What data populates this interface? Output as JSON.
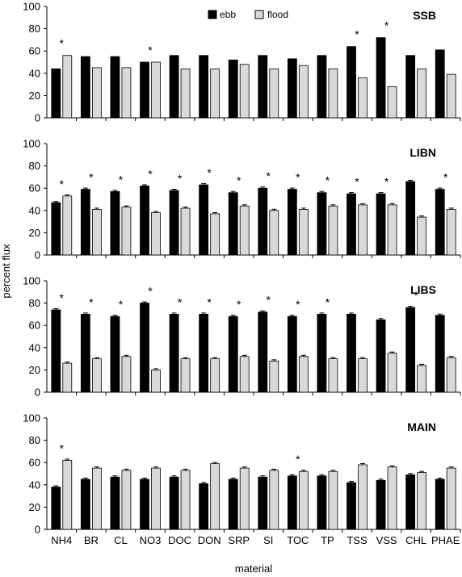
{
  "figure": {
    "ylabel": "percent flux",
    "xlabel": "material",
    "legend": {
      "ebb_label": "ebb",
      "flood_label": "flood",
      "placement": "top-center (first panel)"
    }
  },
  "colors": {
    "ebb": "#000000",
    "flood": "#d9d9d9"
  },
  "chart_data": [
    {
      "type": "bar",
      "title": "SSB",
      "categories": [
        "NH4",
        "BR",
        "CL",
        "NO3",
        "DOC",
        "DON",
        "SRP",
        "SI",
        "TOC",
        "TP",
        "TSS",
        "VSS",
        "CHL",
        "PHAE"
      ],
      "ylim": [
        0,
        100
      ],
      "yticks": [
        0,
        20,
        40,
        60,
        80,
        100
      ],
      "grid": false,
      "series": [
        {
          "name": "ebb",
          "values": [
            44,
            55,
            55,
            50,
            56,
            56,
            52,
            56,
            53,
            56,
            64,
            72,
            56,
            61
          ]
        },
        {
          "name": "flood",
          "values": [
            56,
            45,
            45,
            50,
            44,
            44,
            48,
            44,
            47,
            44,
            36,
            28,
            44,
            39
          ]
        }
      ],
      "significance": [
        "*",
        "",
        "",
        "*",
        "",
        "",
        "",
        "",
        "",
        "",
        "*",
        "*",
        "",
        ""
      ]
    },
    {
      "type": "bar",
      "title": "LIBN",
      "categories": [
        "NH4",
        "BR",
        "CL",
        "NO3",
        "DOC",
        "DON",
        "SRP",
        "SI",
        "TOC",
        "TP",
        "TSS",
        "VSS",
        "CHL",
        "PHAE"
      ],
      "ylim": [
        0,
        100
      ],
      "yticks": [
        0,
        20,
        40,
        60,
        80,
        100
      ],
      "grid": false,
      "series": [
        {
          "name": "ebb",
          "values": [
            47,
            59,
            57,
            62,
            58,
            63,
            56,
            60,
            59,
            56,
            55,
            55,
            66,
            59
          ]
        },
        {
          "name": "flood",
          "values": [
            53,
            41,
            43,
            38,
            42,
            37,
            44,
            40,
            41,
            44,
            45,
            45,
            34,
            41
          ]
        }
      ],
      "significance": [
        "*",
        "*",
        "*",
        "*",
        "*",
        "*",
        "*",
        "*",
        "*",
        "*",
        "*",
        "*",
        "",
        "*"
      ]
    },
    {
      "type": "bar",
      "title": "LIBS",
      "categories": [
        "NH4",
        "BR",
        "CL",
        "NO3",
        "DOC",
        "DON",
        "SRP",
        "SI",
        "TOC",
        "TP",
        "TSS",
        "VSS",
        "CHL",
        "PHAE"
      ],
      "ylim": [
        0,
        100
      ],
      "yticks": [
        0,
        20,
        40,
        60,
        80,
        100
      ],
      "grid": false,
      "series": [
        {
          "name": "ebb",
          "values": [
            74,
            70,
            68,
            80,
            70,
            70,
            68,
            72,
            68,
            70,
            70,
            65,
            76,
            69
          ]
        },
        {
          "name": "flood",
          "values": [
            26,
            30,
            32,
            20,
            30,
            30,
            32,
            28,
            32,
            30,
            30,
            35,
            24,
            31
          ]
        }
      ],
      "significance": [
        "*",
        "*",
        "*",
        "*",
        "*",
        "*",
        "*",
        "*",
        "*",
        "*",
        "",
        "",
        "*",
        ""
      ]
    },
    {
      "type": "bar",
      "title": "MAIN",
      "categories": [
        "NH4",
        "BR",
        "CL",
        "NO3",
        "DOC",
        "DON",
        "SRP",
        "SI",
        "TOC",
        "TP",
        "TSS",
        "VSS",
        "CHL",
        "PHAE"
      ],
      "ylim": [
        0,
        100
      ],
      "yticks": [
        0,
        20,
        40,
        60,
        80,
        100
      ],
      "grid": false,
      "series": [
        {
          "name": "ebb",
          "values": [
            38,
            45,
            47,
            45,
            47,
            41,
            45,
            47,
            48,
            48,
            42,
            44,
            49,
            45
          ]
        },
        {
          "name": "flood",
          "values": [
            62,
            55,
            53,
            55,
            53,
            59,
            55,
            53,
            52,
            52,
            58,
            56,
            51,
            55
          ]
        }
      ],
      "significance": [
        "*",
        "",
        "",
        "",
        "",
        "",
        "",
        "",
        "*",
        "",
        "",
        "",
        "",
        ""
      ]
    }
  ]
}
